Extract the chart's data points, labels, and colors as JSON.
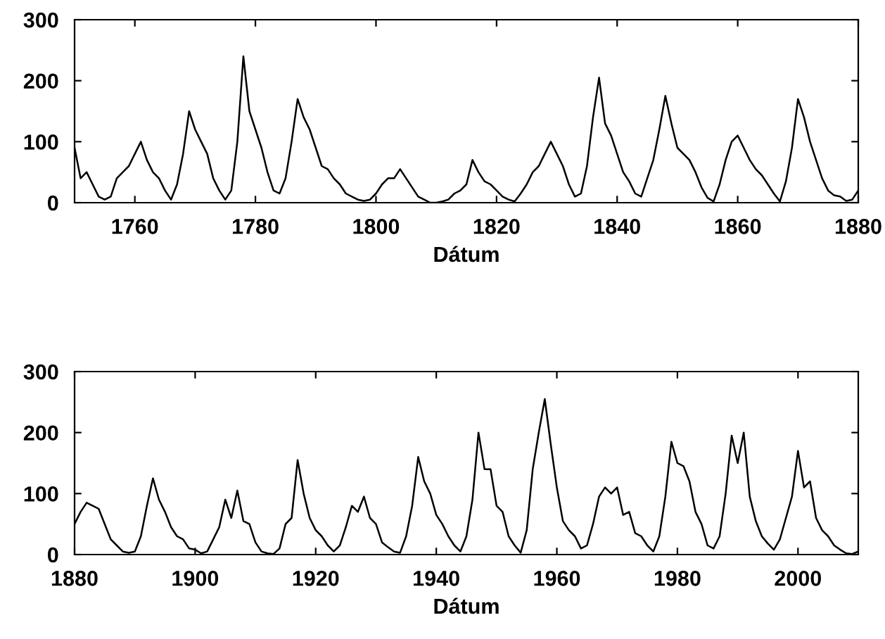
{
  "chart_data": [
    {
      "type": "line",
      "xlabel": "Dátum",
      "xlim": [
        1750,
        1880
      ],
      "xticks": [
        1760,
        1780,
        1800,
        1820,
        1840,
        1860,
        1880
      ],
      "ylim": [
        0,
        300
      ],
      "yticks": [
        0,
        100,
        200,
        300
      ],
      "grid": false,
      "series": [
        {
          "color": "#000000",
          "x": [
            1750,
            1751,
            1752,
            1753,
            1754,
            1755,
            1756,
            1757,
            1758,
            1759,
            1760,
            1761,
            1762,
            1763,
            1764,
            1765,
            1766,
            1767,
            1768,
            1769,
            1770,
            1771,
            1772,
            1773,
            1774,
            1775,
            1776,
            1777,
            1778,
            1779,
            1780,
            1781,
            1782,
            1783,
            1784,
            1785,
            1786,
            1787,
            1788,
            1789,
            1790,
            1791,
            1792,
            1793,
            1794,
            1795,
            1796,
            1797,
            1798,
            1799,
            1800,
            1801,
            1802,
            1803,
            1804,
            1805,
            1806,
            1807,
            1808,
            1809,
            1810,
            1811,
            1812,
            1813,
            1814,
            1815,
            1816,
            1817,
            1818,
            1819,
            1820,
            1821,
            1822,
            1823,
            1824,
            1825,
            1826,
            1827,
            1828,
            1829,
            1830,
            1831,
            1832,
            1833,
            1834,
            1835,
            1836,
            1837,
            1838,
            1839,
            1840,
            1841,
            1842,
            1843,
            1844,
            1845,
            1846,
            1847,
            1848,
            1849,
            1850,
            1851,
            1852,
            1853,
            1854,
            1855,
            1856,
            1857,
            1858,
            1859,
            1860,
            1861,
            1862,
            1863,
            1864,
            1865,
            1866,
            1867,
            1868,
            1869,
            1870,
            1871,
            1872,
            1873,
            1874,
            1875,
            1876,
            1877,
            1878,
            1879,
            1880
          ],
          "values": [
            90,
            40,
            50,
            30,
            10,
            5,
            10,
            40,
            50,
            60,
            80,
            100,
            70,
            50,
            40,
            20,
            5,
            30,
            80,
            150,
            120,
            100,
            80,
            40,
            20,
            5,
            20,
            100,
            240,
            150,
            120,
            90,
            50,
            20,
            15,
            40,
            100,
            170,
            140,
            120,
            90,
            60,
            55,
            40,
            30,
            15,
            10,
            5,
            3,
            5,
            15,
            30,
            40,
            40,
            55,
            40,
            25,
            10,
            5,
            0,
            0,
            2,
            5,
            15,
            20,
            30,
            70,
            50,
            35,
            30,
            20,
            10,
            5,
            2,
            15,
            30,
            50,
            60,
            80,
            100,
            80,
            60,
            30,
            10,
            15,
            60,
            140,
            205,
            130,
            110,
            80,
            50,
            35,
            15,
            10,
            40,
            70,
            120,
            175,
            130,
            90,
            80,
            70,
            50,
            25,
            8,
            2,
            30,
            70,
            100,
            110,
            90,
            70,
            55,
            45,
            30,
            15,
            2,
            35,
            90,
            170,
            140,
            100,
            70,
            40,
            20,
            12,
            10,
            3,
            5,
            20
          ]
        }
      ]
    },
    {
      "type": "line",
      "xlabel": "Dátum",
      "xlim": [
        1880,
        2010
      ],
      "xticks": [
        1880,
        1900,
        1920,
        1940,
        1960,
        1980,
        2000
      ],
      "ylim": [
        0,
        300
      ],
      "yticks": [
        0,
        100,
        200,
        300
      ],
      "grid": false,
      "series": [
        {
          "color": "#000000",
          "x": [
            1880,
            1881,
            1882,
            1883,
            1884,
            1885,
            1886,
            1887,
            1888,
            1889,
            1890,
            1891,
            1892,
            1893,
            1894,
            1895,
            1896,
            1897,
            1898,
            1899,
            1900,
            1901,
            1902,
            1903,
            1904,
            1905,
            1906,
            1907,
            1908,
            1909,
            1910,
            1911,
            1912,
            1913,
            1914,
            1915,
            1916,
            1917,
            1918,
            1919,
            1920,
            1921,
            1922,
            1923,
            1924,
            1925,
            1926,
            1927,
            1928,
            1929,
            1930,
            1931,
            1932,
            1933,
            1934,
            1935,
            1936,
            1937,
            1938,
            1939,
            1940,
            1941,
            1942,
            1943,
            1944,
            1945,
            1946,
            1947,
            1948,
            1949,
            1950,
            1951,
            1952,
            1953,
            1954,
            1955,
            1956,
            1957,
            1958,
            1959,
            1960,
            1961,
            1962,
            1963,
            1964,
            1965,
            1966,
            1967,
            1968,
            1969,
            1970,
            1971,
            1972,
            1973,
            1974,
            1975,
            1976,
            1977,
            1978,
            1979,
            1980,
            1981,
            1982,
            1983,
            1984,
            1985,
            1986,
            1987,
            1988,
            1989,
            1990,
            1991,
            1992,
            1993,
            1994,
            1995,
            1996,
            1997,
            1998,
            1999,
            2000,
            2001,
            2002,
            2003,
            2004,
            2005,
            2006,
            2007,
            2008,
            2009,
            2010
          ],
          "values": [
            50,
            70,
            85,
            80,
            75,
            50,
            25,
            15,
            5,
            3,
            5,
            30,
            80,
            125,
            90,
            70,
            45,
            30,
            25,
            10,
            8,
            2,
            5,
            25,
            45,
            90,
            60,
            105,
            55,
            50,
            20,
            5,
            2,
            1,
            10,
            50,
            60,
            155,
            100,
            60,
            40,
            30,
            15,
            5,
            15,
            45,
            80,
            70,
            95,
            60,
            50,
            20,
            12,
            5,
            3,
            30,
            80,
            160,
            120,
            100,
            65,
            50,
            30,
            15,
            5,
            30,
            90,
            200,
            140,
            140,
            80,
            70,
            30,
            15,
            3,
            40,
            140,
            200,
            255,
            180,
            110,
            55,
            40,
            30,
            10,
            15,
            50,
            95,
            110,
            100,
            110,
            65,
            70,
            35,
            30,
            15,
            5,
            30,
            95,
            185,
            150,
            145,
            120,
            70,
            50,
            15,
            10,
            30,
            100,
            195,
            150,
            200,
            95,
            55,
            30,
            18,
            8,
            25,
            60,
            95,
            170,
            110,
            120,
            60,
            40,
            30,
            15,
            8,
            2,
            1,
            5
          ]
        }
      ]
    }
  ]
}
